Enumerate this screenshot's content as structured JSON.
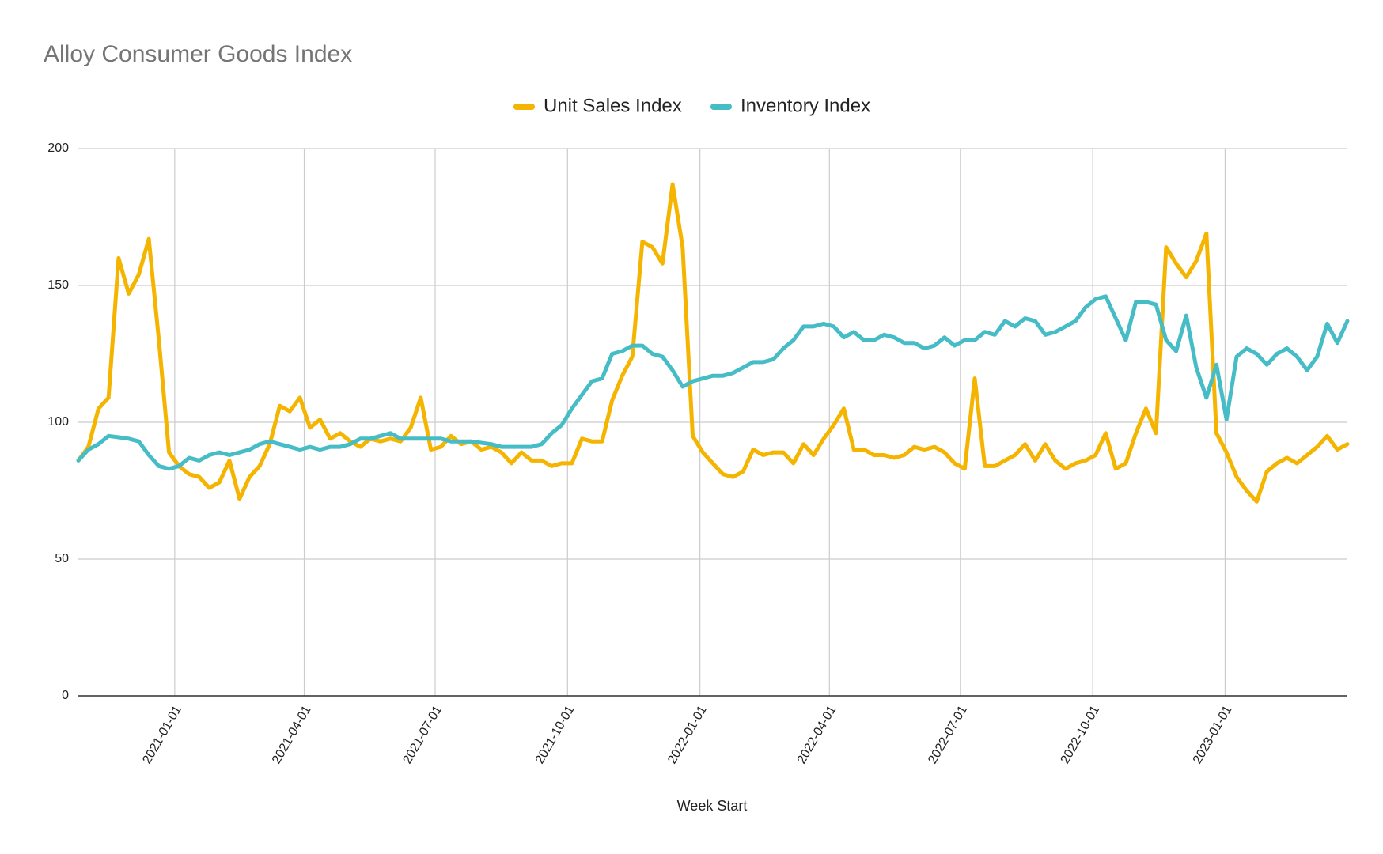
{
  "chart_data": {
    "type": "line",
    "title": "Alloy Consumer Goods Index",
    "xlabel": "Week Start",
    "x_start": "2020-10-26",
    "x_step_days": 7,
    "xlim": [
      "2020-10-26",
      "2023-03-27"
    ],
    "xticks": [
      "2021-01-01",
      "2021-04-01",
      "2021-07-01",
      "2021-10-01",
      "2022-01-01",
      "2022-04-01",
      "2022-07-01",
      "2022-10-01",
      "2023-01-01"
    ],
    "ylim": [
      0,
      200
    ],
    "yticks": [
      0,
      50,
      100,
      150,
      200
    ],
    "grid": true,
    "legend": "top",
    "series": [
      {
        "name": "Unit Sales Index",
        "color": "#f4b400",
        "values": [
          86,
          91,
          105,
          109,
          160,
          147,
          154,
          167,
          130,
          89,
          84,
          81,
          80,
          76,
          78,
          86,
          72,
          80,
          84,
          92,
          106,
          104,
          109,
          98,
          101,
          94,
          96,
          93,
          91,
          94,
          93,
          94,
          93,
          98,
          109,
          90,
          91,
          95,
          92,
          93,
          90,
          91,
          89,
          85,
          89,
          86,
          86,
          84,
          85,
          85,
          94,
          93,
          93,
          108,
          117,
          124,
          166,
          164,
          158,
          187,
          164,
          95,
          89,
          85,
          81,
          80,
          82,
          90,
          88,
          89,
          89,
          85,
          92,
          88,
          94,
          99,
          105,
          90,
          90,
          88,
          88,
          87,
          88,
          91,
          90,
          91,
          89,
          85,
          83,
          116,
          84,
          84,
          86,
          88,
          92,
          86,
          92,
          86,
          83,
          85,
          86,
          88,
          96,
          83,
          85,
          96,
          105,
          96,
          164,
          158,
          153,
          159,
          169,
          96,
          89,
          80,
          75,
          71,
          82,
          85,
          87,
          85,
          88,
          91,
          95,
          90,
          92
        ]
      },
      {
        "name": "Inventory Index",
        "color": "#46bdc6",
        "values": [
          86,
          90,
          92,
          95,
          94.5,
          94,
          93,
          88,
          84,
          83,
          84,
          87,
          86,
          88,
          89,
          88,
          89,
          90,
          92,
          93,
          92,
          91,
          90,
          91,
          90,
          91,
          91,
          92,
          94,
          94,
          95,
          96,
          94,
          94,
          94,
          94,
          94,
          93,
          93,
          93,
          92.5,
          92,
          91,
          91,
          91,
          91,
          92,
          96,
          99,
          105,
          110,
          115,
          116,
          125,
          126,
          128,
          128,
          125,
          124,
          119,
          113,
          115,
          116,
          117,
          117,
          118,
          120,
          122,
          122,
          123,
          127,
          130,
          135,
          135,
          136,
          135,
          131,
          133,
          130,
          130,
          132,
          131,
          129,
          129,
          127,
          128,
          131,
          128,
          130,
          130,
          133,
          132,
          137,
          135,
          138,
          137,
          132,
          133,
          135,
          137,
          142,
          145,
          146,
          138,
          130,
          144,
          144,
          143,
          130,
          126,
          139,
          120,
          109,
          121,
          101,
          124,
          127,
          125,
          121,
          125,
          127,
          124,
          119,
          124,
          136,
          129,
          137
        ]
      }
    ]
  }
}
